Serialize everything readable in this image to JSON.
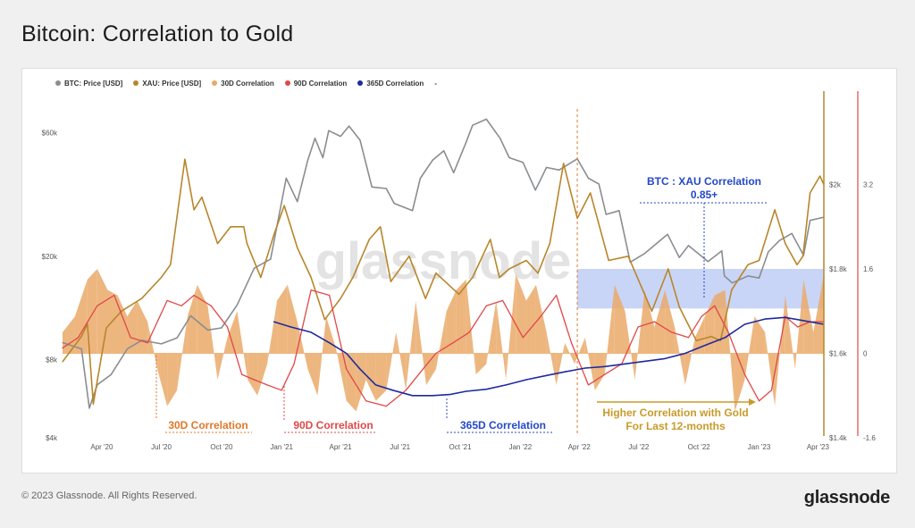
{
  "title": "Bitcoin: Correlation to Gold",
  "footer": {
    "copyright": "© 2023 Glassnode. All Rights Reserved.",
    "brand": "glassnode"
  },
  "watermark": "glassnode",
  "colors": {
    "btc": "#8a8d90",
    "xau": "#b8862b",
    "corr30": "#eaa968",
    "corr90": "#e04848",
    "corr365": "#1f2a9e",
    "annot_orange": "#e0782a",
    "annot_red": "#e04848",
    "annot_blue": "#2448c8",
    "annot_gold": "#c89a2a",
    "highlight": "#9cb3f0"
  },
  "chart_data": {
    "type": "line",
    "title": "Bitcoin: Correlation to Gold",
    "legend": [
      "BTC: Price [USD]",
      "XAU: Price [USD]",
      "30D Correlation",
      "90D Correlation",
      "365D Correlation",
      "-"
    ],
    "x_tick_labels": [
      "Apr '20",
      "Jul '20",
      "Oct '20",
      "Jan '21",
      "Apr '21",
      "Jul '21",
      "Oct '21",
      "Jan '22",
      "Apr '22",
      "Jul '22",
      "Oct '22",
      "Jan '23",
      "Apr '23"
    ],
    "x_range": [
      "2020-02-01",
      "2023-04-10"
    ],
    "left_axis": {
      "label_ticks": [
        "$60k",
        "$20k",
        "$8k",
        "$4k"
      ],
      "values": [
        60000,
        20000,
        8000,
        4000
      ],
      "scale": "log",
      "range": [
        4000,
        80000
      ]
    },
    "mid_axis": {
      "label_ticks": [
        "$2k",
        "$1.8k",
        "$1.6k",
        "$1.4k"
      ],
      "values": [
        2000,
        1800,
        1600,
        1400
      ],
      "range": [
        1400,
        2200
      ]
    },
    "right_axis": {
      "label_ticks": [
        "3.2",
        "1.6",
        "0",
        "-1.6"
      ],
      "values": [
        3.2,
        1.6,
        0,
        -1.6
      ],
      "range": [
        -1.6,
        4.8
      ]
    },
    "series": [
      {
        "name": "BTC: Price [USD]",
        "axis": "left",
        "x": [
          "2020-02-01",
          "2020-03-01",
          "2020-03-13",
          "2020-03-25",
          "2020-04-15",
          "2020-05-10",
          "2020-06-01",
          "2020-07-01",
          "2020-07-25",
          "2020-08-15",
          "2020-09-10",
          "2020-10-01",
          "2020-10-25",
          "2020-11-20",
          "2020-12-15",
          "2021-01-08",
          "2021-01-25",
          "2021-02-10",
          "2021-02-21",
          "2021-03-05",
          "2021-03-14",
          "2021-04-01",
          "2021-04-14",
          "2021-05-01",
          "2021-05-19",
          "2021-06-10",
          "2021-06-22",
          "2021-07-20",
          "2021-08-01",
          "2021-08-20",
          "2021-09-06",
          "2021-09-21",
          "2021-10-10",
          "2021-10-20",
          "2021-11-10",
          "2021-12-01",
          "2021-12-15",
          "2022-01-05",
          "2022-01-24",
          "2022-02-10",
          "2022-03-01",
          "2022-03-29",
          "2022-04-15",
          "2022-05-01",
          "2022-05-12",
          "2022-06-01",
          "2022-06-18",
          "2022-07-10",
          "2022-08-14",
          "2022-09-01",
          "2022-09-15",
          "2022-10-15",
          "2022-11-05",
          "2022-11-09",
          "2022-11-21",
          "2022-12-15",
          "2023-01-01",
          "2023-01-15",
          "2023-02-01",
          "2023-02-20",
          "2023-03-10",
          "2023-03-20",
          "2023-04-10"
        ],
        "values": [
          9300,
          8800,
          5200,
          6400,
          7000,
          8800,
          9500,
          9200,
          9700,
          11800,
          10400,
          10600,
          13000,
          18000,
          19500,
          40000,
          32500,
          47000,
          57000,
          48000,
          61000,
          58000,
          63500,
          56000,
          37000,
          36500,
          32000,
          30000,
          40000,
          47000,
          51000,
          42000,
          55000,
          64000,
          67500,
          57000,
          48000,
          46000,
          36000,
          44000,
          43000,
          47500,
          40000,
          38000,
          29000,
          30000,
          19000,
          20500,
          24300,
          19800,
          22000,
          19100,
          21000,
          16800,
          15800,
          16800,
          16500,
          20800,
          23000,
          24500,
          20200,
          27500,
          28300
        ]
      },
      {
        "name": "XAU: Price [USD]",
        "axis": "mid",
        "x": [
          "2020-02-01",
          "2020-03-01",
          "2020-03-10",
          "2020-03-19",
          "2020-04-08",
          "2020-05-01",
          "2020-06-01",
          "2020-07-01",
          "2020-07-15",
          "2020-08-06",
          "2020-08-20",
          "2020-09-01",
          "2020-09-25",
          "2020-10-15",
          "2020-11-04",
          "2020-11-09",
          "2020-11-30",
          "2020-12-20",
          "2021-01-05",
          "2021-01-25",
          "2021-02-15",
          "2021-03-08",
          "2021-04-01",
          "2021-04-20",
          "2021-05-15",
          "2021-06-01",
          "2021-06-17",
          "2021-07-15",
          "2021-08-09",
          "2021-08-25",
          "2021-09-29",
          "2021-10-20",
          "2021-11-16",
          "2021-11-30",
          "2021-12-15",
          "2022-01-10",
          "2022-01-28",
          "2022-02-15",
          "2022-03-08",
          "2022-03-29",
          "2022-04-18",
          "2022-05-16",
          "2022-06-15",
          "2022-07-21",
          "2022-08-15",
          "2022-09-01",
          "2022-09-27",
          "2022-10-20",
          "2022-11-03",
          "2022-11-20",
          "2022-12-15",
          "2023-01-01",
          "2023-01-25",
          "2023-02-10",
          "2023-02-28",
          "2023-03-09",
          "2023-03-20",
          "2023-04-04",
          "2023-04-10"
        ],
        "values": [
          1580,
          1640,
          1670,
          1480,
          1660,
          1700,
          1730,
          1780,
          1810,
          2060,
          1940,
          1970,
          1860,
          1900,
          1900,
          1860,
          1780,
          1880,
          1950,
          1850,
          1780,
          1680,
          1730,
          1780,
          1870,
          1900,
          1770,
          1830,
          1730,
          1790,
          1740,
          1780,
          1870,
          1780,
          1800,
          1820,
          1790,
          1860,
          2050,
          1920,
          1980,
          1820,
          1830,
          1700,
          1800,
          1710,
          1630,
          1640,
          1630,
          1750,
          1810,
          1820,
          1940,
          1860,
          1810,
          1830,
          1980,
          2020,
          2000
        ]
      },
      {
        "name": "30D Correlation",
        "axis": "right",
        "type": "area",
        "x": [
          "2020-02-01",
          "2020-02-20",
          "2020-03-10",
          "2020-03-25",
          "2020-04-10",
          "2020-04-25",
          "2020-05-10",
          "2020-05-25",
          "2020-06-10",
          "2020-06-25",
          "2020-07-10",
          "2020-07-25",
          "2020-08-10",
          "2020-08-25",
          "2020-09-10",
          "2020-09-25",
          "2020-10-10",
          "2020-10-25",
          "2020-11-10",
          "2020-11-25",
          "2020-12-10",
          "2020-12-25",
          "2021-01-10",
          "2021-01-25",
          "2021-02-10",
          "2021-02-25",
          "2021-03-10",
          "2021-03-25",
          "2021-04-10",
          "2021-04-25",
          "2021-05-10",
          "2021-05-25",
          "2021-06-10",
          "2021-06-25",
          "2021-07-10",
          "2021-07-25",
          "2021-08-10",
          "2021-08-25",
          "2021-09-10",
          "2021-09-25",
          "2021-10-10",
          "2021-10-25",
          "2021-11-10",
          "2021-11-25",
          "2021-12-10",
          "2021-12-25",
          "2022-01-10",
          "2022-01-25",
          "2022-02-10",
          "2022-02-25",
          "2022-03-10",
          "2022-03-25",
          "2022-04-10",
          "2022-04-25",
          "2022-05-10",
          "2022-05-25",
          "2022-06-10",
          "2022-06-25",
          "2022-07-10",
          "2022-07-25",
          "2022-08-10",
          "2022-08-25",
          "2022-09-10",
          "2022-09-25",
          "2022-10-10",
          "2022-10-25",
          "2022-11-10",
          "2022-11-25",
          "2022-12-10",
          "2022-12-25",
          "2023-01-10",
          "2023-01-25",
          "2023-02-10",
          "2023-02-25",
          "2023-03-10",
          "2023-03-25",
          "2023-04-10"
        ],
        "values": [
          0.4,
          0.7,
          1.4,
          1.6,
          1.2,
          1.1,
          0.7,
          1.0,
          0.6,
          -0.3,
          -1.0,
          -0.7,
          0.7,
          1.3,
          0.9,
          -0.5,
          0.3,
          0.8,
          -0.5,
          -0.8,
          -0.2,
          1.0,
          1.3,
          0.6,
          -0.3,
          -0.8,
          0.7,
          0.1,
          -0.9,
          -1.1,
          -0.5,
          -0.9,
          -0.7,
          0.4,
          -0.7,
          1.0,
          -0.6,
          -0.3,
          0.8,
          1.2,
          1.4,
          -0.4,
          -0.2,
          1.0,
          -0.5,
          1.5,
          1.0,
          1.3,
          0.4,
          -0.6,
          0.2,
          -0.2,
          0.3,
          -0.7,
          -0.4,
          1.3,
          0.8,
          -0.5,
          1.2,
          0.5,
          1.2,
          0.5,
          -0.6,
          0.3,
          0.7,
          1.1,
          1.2,
          -1.1,
          -0.5,
          0.7,
          0.4,
          -1.0,
          1.1,
          -0.3,
          1.4,
          0.4,
          1.5
        ]
      },
      {
        "name": "90D Correlation",
        "axis": "right",
        "x": [
          "2020-02-01",
          "2020-02-25",
          "2020-03-25",
          "2020-04-20",
          "2020-05-15",
          "2020-06-10",
          "2020-07-10",
          "2020-08-01",
          "2020-08-20",
          "2020-09-15",
          "2020-10-10",
          "2020-11-01",
          "2020-11-20",
          "2020-12-10",
          "2021-01-01",
          "2021-01-20",
          "2021-02-15",
          "2021-03-15",
          "2021-04-10",
          "2021-05-10",
          "2021-06-10",
          "2021-07-10",
          "2021-08-05",
          "2021-08-25",
          "2021-09-20",
          "2021-10-15",
          "2021-11-10",
          "2021-12-05",
          "2022-01-05",
          "2022-02-01",
          "2022-02-25",
          "2022-03-20",
          "2022-04-15",
          "2022-05-10",
          "2022-06-05",
          "2022-06-30",
          "2022-07-25",
          "2022-08-20",
          "2022-09-15",
          "2022-10-05",
          "2022-10-25",
          "2022-11-15",
          "2022-12-10",
          "2023-01-01",
          "2023-01-20",
          "2023-02-10",
          "2023-03-01",
          "2023-03-20",
          "2023-04-10"
        ],
        "values": [
          0.1,
          0.3,
          0.9,
          1.1,
          0.3,
          0.2,
          1.0,
          0.9,
          1.1,
          0.9,
          0.5,
          -0.4,
          -0.5,
          -0.6,
          -0.7,
          -0.2,
          1.2,
          1.1,
          -0.3,
          -0.9,
          -1.0,
          -0.7,
          -0.3,
          0.0,
          0.2,
          0.4,
          0.9,
          1.0,
          0.3,
          0.7,
          1.1,
          0.2,
          -0.6,
          -0.4,
          -0.2,
          0.5,
          0.6,
          0.4,
          0.3,
          0.7,
          0.9,
          0.4,
          -0.4,
          -0.9,
          -0.7,
          0.7,
          0.5,
          0.6,
          0.6
        ]
      },
      {
        "name": "365D Correlation",
        "axis": "right",
        "x": [
          "2020-12-20",
          "2021-01-15",
          "2021-02-15",
          "2021-03-15",
          "2021-04-10",
          "2021-05-01",
          "2021-05-25",
          "2021-06-20",
          "2021-07-20",
          "2021-08-20",
          "2021-09-15",
          "2021-10-10",
          "2021-11-10",
          "2021-12-10",
          "2022-01-10",
          "2022-02-10",
          "2022-03-10",
          "2022-04-10",
          "2022-05-10",
          "2022-06-10",
          "2022-07-10",
          "2022-08-10",
          "2022-09-10",
          "2022-10-10",
          "2022-11-10",
          "2022-12-10",
          "2023-01-10",
          "2023-02-10",
          "2023-03-10",
          "2023-04-10"
        ],
        "values": [
          0.6,
          0.5,
          0.4,
          0.2,
          0.0,
          -0.3,
          -0.6,
          -0.7,
          -0.8,
          -0.8,
          -0.78,
          -0.72,
          -0.68,
          -0.6,
          -0.5,
          -0.42,
          -0.35,
          -0.28,
          -0.25,
          -0.2,
          -0.15,
          -0.1,
          0.0,
          0.15,
          0.3,
          0.55,
          0.65,
          0.68,
          0.62,
          0.55
        ]
      }
    ],
    "annotations": [
      {
        "text": "30D Correlation",
        "color": "annot_orange"
      },
      {
        "text": "90D Correlation",
        "color": "annot_red"
      },
      {
        "text": "365D Correlation",
        "color": "annot_blue"
      },
      {
        "text_line1": "Higher Correlation with Gold",
        "text_line2": "For Last 12-months",
        "color": "annot_gold"
      },
      {
        "text_line1": "BTC : XAU Correlation",
        "text_line2": "0.85+",
        "color": "annot_blue"
      }
    ],
    "highlight_band": {
      "x_start": "2022-03-29",
      "x_end": "2023-04-10",
      "y_range": [
        0.85,
        1.6
      ]
    },
    "vertical_markers": [
      "2022-03-29"
    ],
    "grid": false,
    "legend_position": "top-left"
  }
}
